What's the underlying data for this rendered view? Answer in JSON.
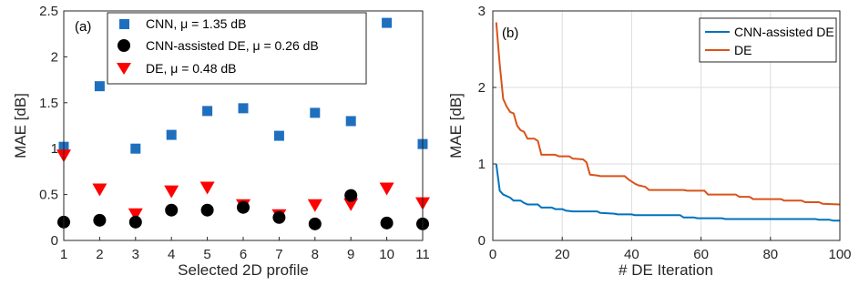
{
  "chart_data": [
    {
      "type": "scatter",
      "panel_label": "(a)",
      "xlabel": "Selected 2D profile",
      "ylabel": "MAE [dB]",
      "xlim": [
        1,
        11
      ],
      "ylim": [
        0,
        2.5
      ],
      "xticks": [
        1,
        2,
        3,
        4,
        5,
        6,
        7,
        8,
        9,
        10,
        11
      ],
      "yticks": [
        0,
        0.5,
        1,
        1.5,
        2,
        2.5
      ],
      "ytick_labels": [
        "0",
        "0.5",
        "1",
        "1.5",
        "2",
        "2.5"
      ],
      "grid": false,
      "legend_position": "top-center",
      "x": [
        1,
        2,
        3,
        4,
        5,
        6,
        7,
        8,
        9,
        10,
        11
      ],
      "series": [
        {
          "name": "CNN",
          "legend_suffix": ", μ = 1.35 dB",
          "marker": "square",
          "color": "#1f6fbf",
          "values": [
            1.02,
            1.68,
            1.0,
            1.15,
            1.41,
            1.44,
            1.14,
            1.39,
            1.3,
            2.37,
            1.05
          ]
        },
        {
          "name": "CNN-assisted DE",
          "legend_suffix": ", μ = 0.26 dB",
          "marker": "circle",
          "color": "#000000",
          "values": [
            0.2,
            0.22,
            0.2,
            0.33,
            0.33,
            0.36,
            0.25,
            0.18,
            0.49,
            0.19,
            0.18
          ]
        },
        {
          "name": "DE",
          "legend_suffix": ", μ = 0.48 dB",
          "marker": "triangle-down",
          "color": "#ff0000",
          "values": [
            0.92,
            0.55,
            0.28,
            0.53,
            0.57,
            0.38,
            0.27,
            0.38,
            0.39,
            0.56,
            0.4
          ]
        }
      ]
    },
    {
      "type": "line",
      "panel_label": "(b)",
      "xlabel": "# DE Iteration",
      "ylabel": "MAE [dB]",
      "xlim": [
        0,
        100
      ],
      "ylim": [
        0,
        3
      ],
      "xticks": [
        0,
        20,
        40,
        60,
        80,
        100
      ],
      "yticks": [
        0,
        1,
        2,
        3
      ],
      "grid": true,
      "legend_position": "top-right",
      "series": [
        {
          "name": "CNN-assisted DE",
          "color": "#0072bd",
          "points": [
            [
              1,
              1.0
            ],
            [
              2,
              0.65
            ],
            [
              3,
              0.6
            ],
            [
              5,
              0.56
            ],
            [
              6,
              0.52
            ],
            [
              8,
              0.52
            ],
            [
              9,
              0.49
            ],
            [
              10,
              0.47
            ],
            [
              13,
              0.47
            ],
            [
              14,
              0.43
            ],
            [
              17,
              0.43
            ],
            [
              18,
              0.41
            ],
            [
              20,
              0.41
            ],
            [
              21,
              0.39
            ],
            [
              23,
              0.38
            ],
            [
              30,
              0.38
            ],
            [
              31,
              0.36
            ],
            [
              35,
              0.35
            ],
            [
              36,
              0.34
            ],
            [
              40,
              0.34
            ],
            [
              41,
              0.33
            ],
            [
              54,
              0.33
            ],
            [
              55,
              0.3
            ],
            [
              58,
              0.3
            ],
            [
              59,
              0.29
            ],
            [
              66,
              0.29
            ],
            [
              67,
              0.28
            ],
            [
              93,
              0.28
            ],
            [
              94,
              0.27
            ],
            [
              97,
              0.27
            ],
            [
              98,
              0.26
            ],
            [
              100,
              0.26
            ]
          ]
        },
        {
          "name": "DE",
          "color": "#d95319",
          "points": [
            [
              1,
              2.85
            ],
            [
              2,
              2.3
            ],
            [
              3,
              1.85
            ],
            [
              4,
              1.75
            ],
            [
              5,
              1.68
            ],
            [
              6,
              1.66
            ],
            [
              7,
              1.5
            ],
            [
              8,
              1.44
            ],
            [
              9,
              1.42
            ],
            [
              10,
              1.33
            ],
            [
              12,
              1.33
            ],
            [
              13,
              1.3
            ],
            [
              14,
              1.12
            ],
            [
              18,
              1.12
            ],
            [
              19,
              1.1
            ],
            [
              22,
              1.1
            ],
            [
              23,
              1.07
            ],
            [
              26,
              1.06
            ],
            [
              27,
              1.02
            ],
            [
              28,
              0.86
            ],
            [
              30,
              0.85
            ],
            [
              31,
              0.84
            ],
            [
              38,
              0.84
            ],
            [
              39,
              0.8
            ],
            [
              41,
              0.74
            ],
            [
              42,
              0.72
            ],
            [
              44,
              0.7
            ],
            [
              45,
              0.66
            ],
            [
              55,
              0.66
            ],
            [
              56,
              0.65
            ],
            [
              61,
              0.65
            ],
            [
              62,
              0.6
            ],
            [
              70,
              0.6
            ],
            [
              71,
              0.57
            ],
            [
              74,
              0.57
            ],
            [
              75,
              0.54
            ],
            [
              83,
              0.54
            ],
            [
              84,
              0.52
            ],
            [
              89,
              0.52
            ],
            [
              90,
              0.5
            ],
            [
              94,
              0.5
            ],
            [
              95,
              0.48
            ],
            [
              100,
              0.47
            ]
          ]
        }
      ]
    }
  ]
}
